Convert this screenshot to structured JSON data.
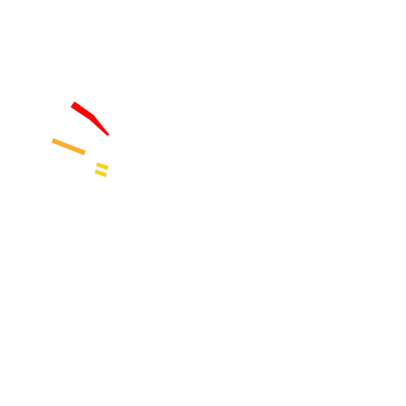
{
  "background_color": "#ffffff",
  "strokes": [
    {
      "name": "red-stroke",
      "color": "#ff0000"
    },
    {
      "name": "orange-stroke",
      "color": "#f9ae2d"
    },
    {
      "name": "yellow-stroke-upper",
      "color": "#f9cf22"
    },
    {
      "name": "yellow-stroke-lower",
      "color": "#f9cf22"
    }
  ]
}
